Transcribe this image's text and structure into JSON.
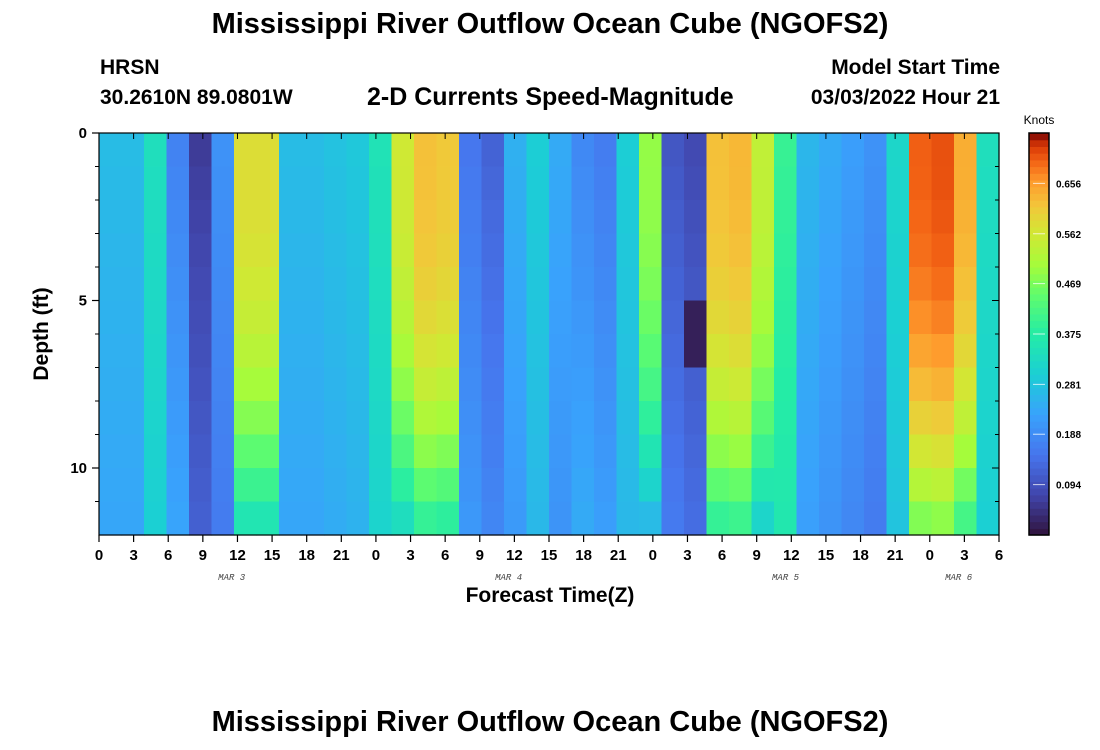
{
  "header": {
    "title": "Mississippi River Outflow Ocean Cube (NGOFS2)",
    "station": "HRSN",
    "coords": "30.2610N  89.0801W",
    "subtitle": "2-D Currents Speed-Magnitude",
    "model_start_label": "Model Start Time",
    "model_start_value": "03/03/2022 Hour 21"
  },
  "footer": {
    "title": "Mississippi River Outflow Ocean Cube (NGOFS2)"
  },
  "chart_data": {
    "type": "heatmap",
    "title": "2-D Currents Speed-Magnitude",
    "xlabel": "Forecast Time(Z)",
    "ylabel": "Depth (ft)",
    "x_range_hours": [
      0,
      78
    ],
    "x_origin": "2022-03-03 00Z",
    "x_tick_labels": [
      "0",
      "3",
      "6",
      "9",
      "12",
      "15",
      "18",
      "21",
      "0",
      "3",
      "6",
      "9",
      "12",
      "15",
      "18",
      "21",
      "0",
      "3",
      "6",
      "9",
      "12",
      "15",
      "18",
      "21",
      "0",
      "3",
      "6"
    ],
    "date_labels": [
      {
        "label": "MAR 3",
        "hour": 11.5
      },
      {
        "label": "MAR 4",
        "hour": 35.5
      },
      {
        "label": "MAR 5",
        "hour": 59.5
      },
      {
        "label": "MAR 6",
        "hour": 74.5
      }
    ],
    "y_range_ft": [
      0,
      12
    ],
    "y_tick_labels": [
      "0",
      "5",
      "10"
    ],
    "y_tick_values": [
      0,
      5,
      10
    ],
    "depth_levels_ft": [
      0.5,
      1.5,
      2.5,
      3.5,
      4.5,
      5.5,
      6.5,
      7.5,
      8.5,
      9.5,
      10.5,
      11.5
    ],
    "hours": [
      0,
      2,
      4,
      6,
      8,
      10,
      12,
      14,
      16,
      18,
      20,
      22,
      24,
      26,
      28,
      30,
      32,
      34,
      36,
      38,
      40,
      42,
      44,
      46,
      48,
      50,
      52,
      54,
      56,
      58,
      60,
      62,
      64,
      66,
      68,
      70,
      72,
      74,
      76,
      78
    ],
    "surface_speed_knots": [
      0.27,
      0.27,
      0.34,
      0.17,
      0.06,
      0.2,
      0.58,
      0.58,
      0.27,
      0.27,
      0.28,
      0.29,
      0.35,
      0.56,
      0.62,
      0.61,
      0.15,
      0.12,
      0.25,
      0.3,
      0.24,
      0.18,
      0.16,
      0.3,
      0.49,
      0.1,
      0.08,
      0.62,
      0.63,
      0.54,
      0.4,
      0.26,
      0.24,
      0.22,
      0.2,
      0.32,
      0.7,
      0.71,
      0.64,
      0.34
    ],
    "slow_core": {
      "center_hour": 52.0,
      "depth_ft": 6.0,
      "min_speed_knots": 0.02
    },
    "colorbar": {
      "title": "Knots",
      "min": 0.0,
      "max": 0.75,
      "tick_labels": [
        "0.094",
        "0.188",
        "0.281",
        "0.375",
        "0.469",
        "0.562",
        "0.656"
      ],
      "tick_values": [
        0.094,
        0.188,
        0.281,
        0.375,
        0.469,
        0.562,
        0.656
      ]
    }
  }
}
